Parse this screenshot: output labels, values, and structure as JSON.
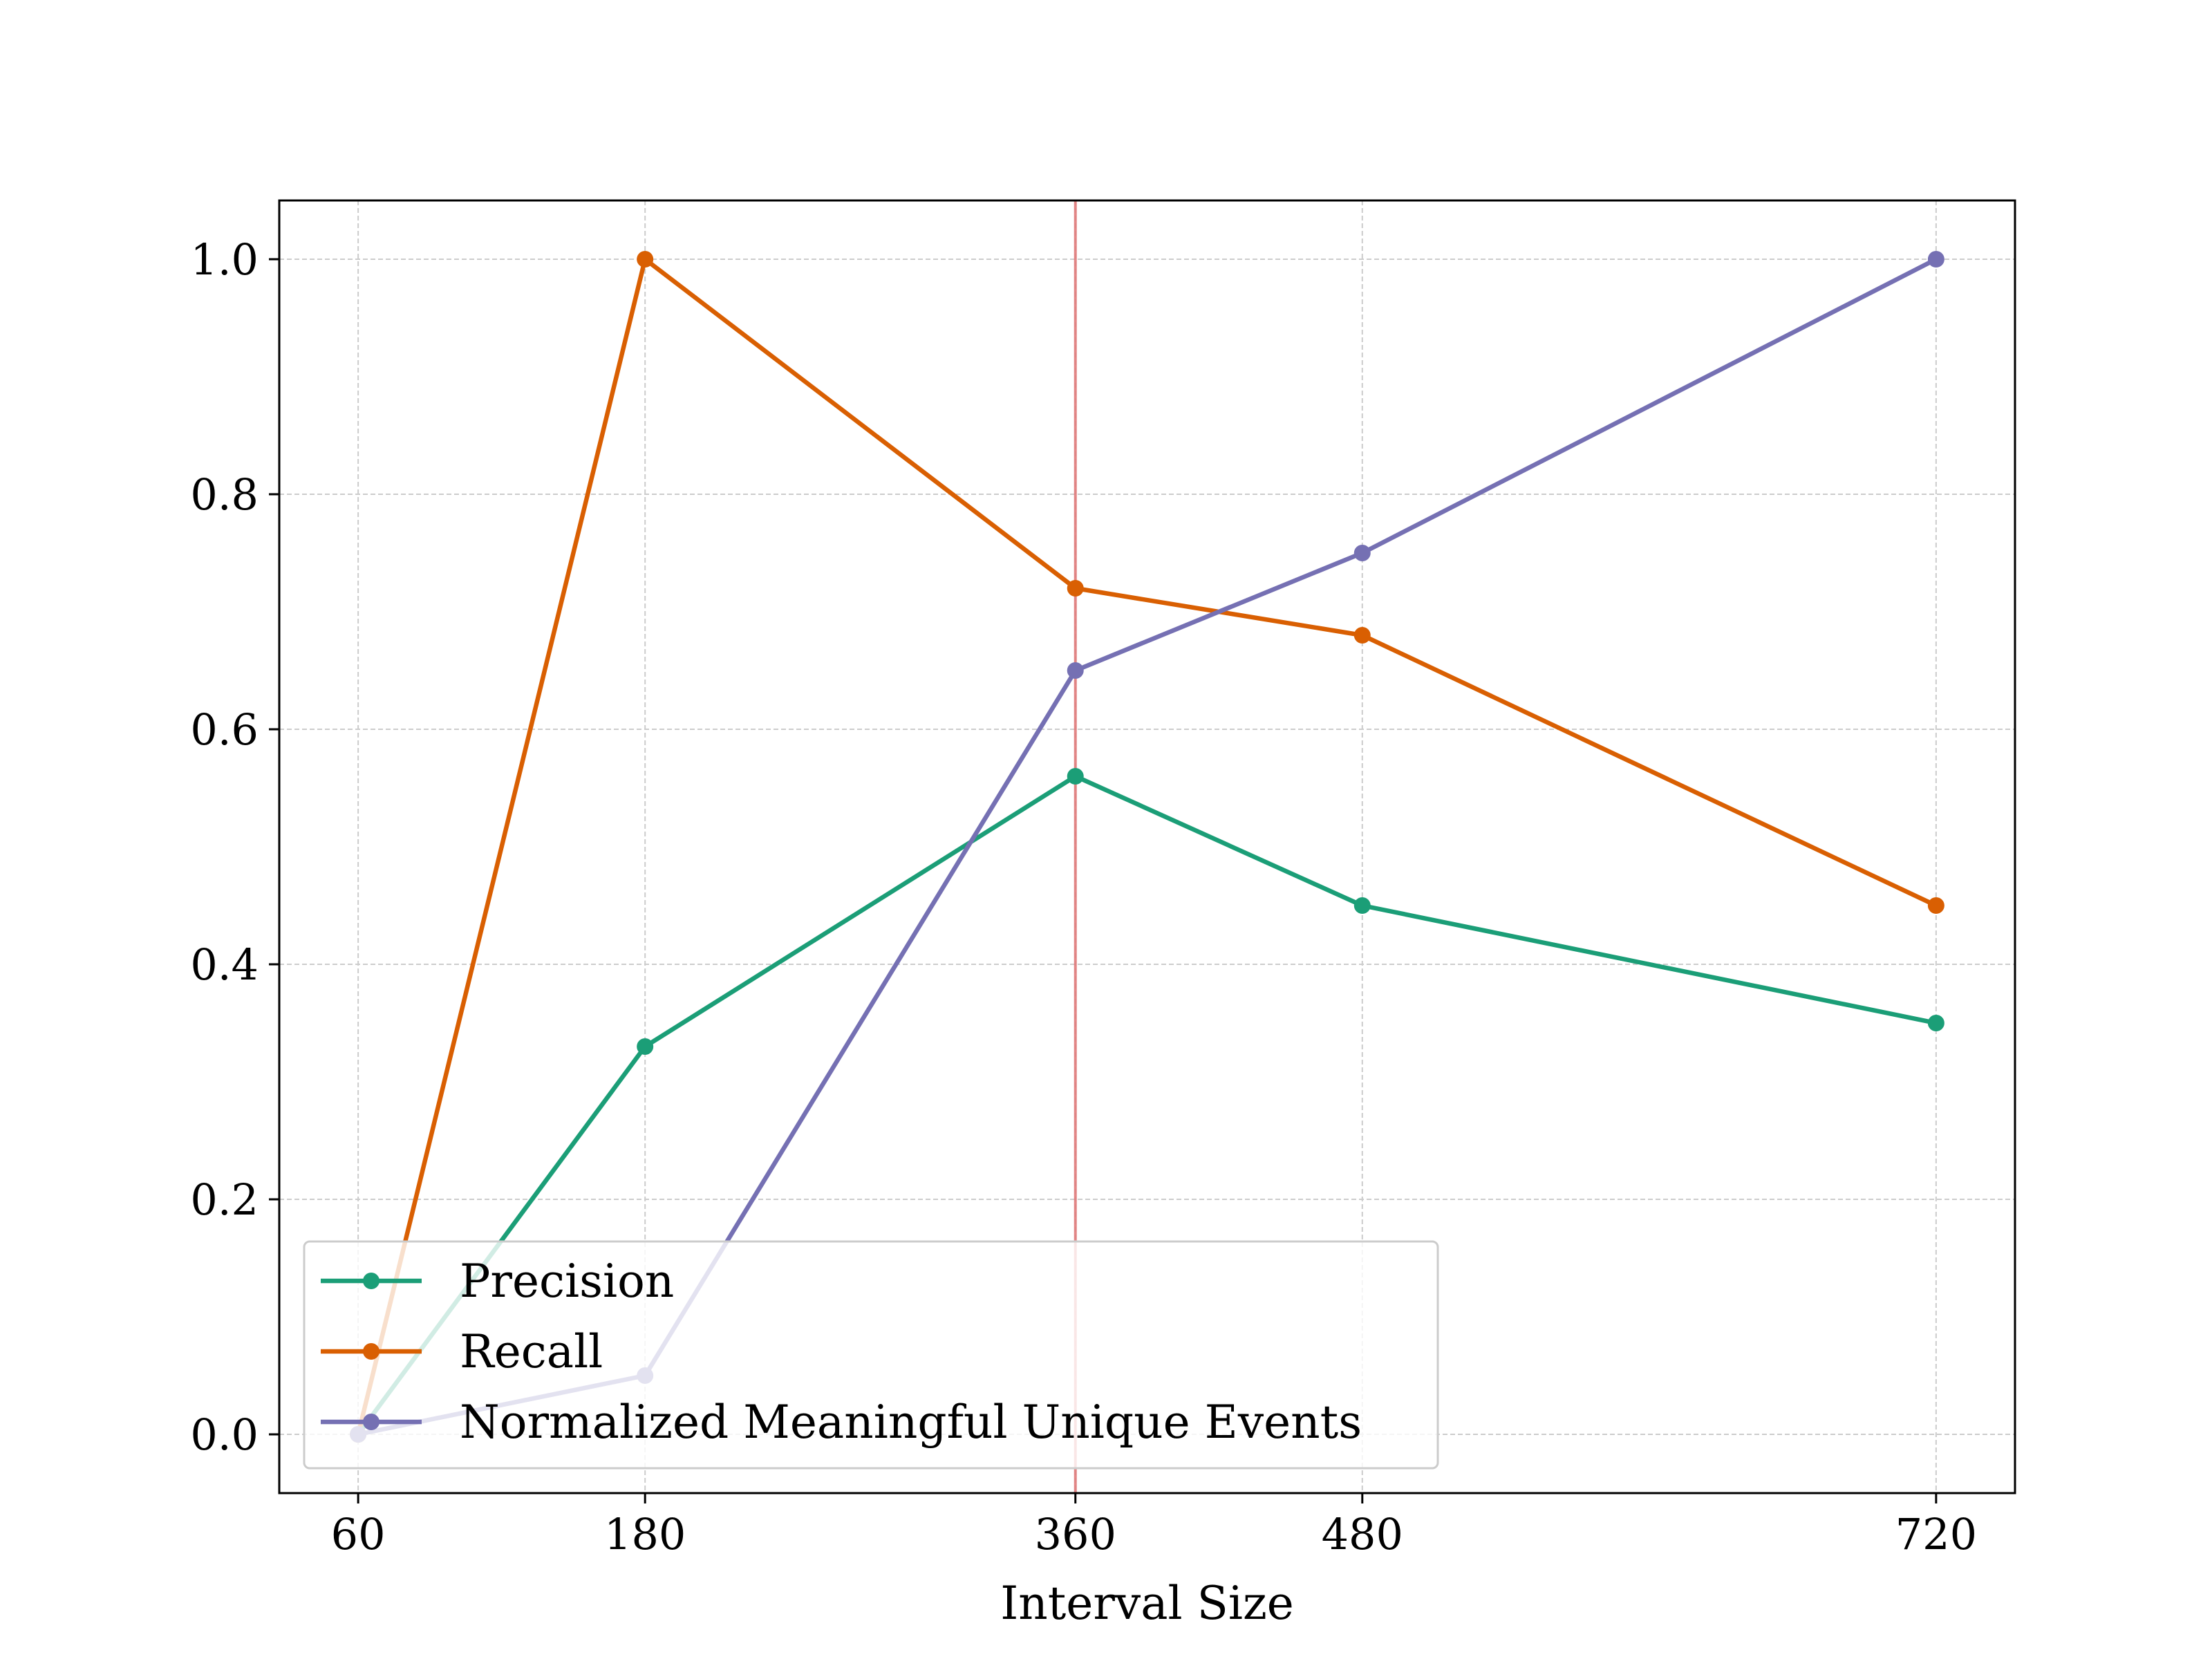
{
  "chart_data": {
    "type": "line",
    "title": "",
    "xlabel": "Interval Size",
    "ylabel": "",
    "x": [
      60,
      180,
      360,
      480,
      720
    ],
    "x_tick_labels": [
      "60",
      "180",
      "360",
      "480",
      "720"
    ],
    "y_ticks": [
      0.0,
      0.2,
      0.4,
      0.6,
      0.8,
      1.0
    ],
    "y_tick_labels": [
      "0.0",
      "0.2",
      "0.4",
      "0.6",
      "0.8",
      "1.0"
    ],
    "xlim": [
      27,
      753
    ],
    "ylim": [
      -0.05,
      1.05
    ],
    "grid": true,
    "legend_position": "lower-left",
    "vertical_reference_line": {
      "x": 360,
      "color": "#e07b7b"
    },
    "series": [
      {
        "name": "Precision",
        "color": "#1b9e77",
        "values": [
          0.0,
          0.33,
          0.56,
          0.45,
          0.35
        ]
      },
      {
        "name": "Recall",
        "color": "#d95f02",
        "values": [
          0.0,
          1.0,
          0.72,
          0.68,
          0.45
        ]
      },
      {
        "name": "Normalized Meaningful Unique Events",
        "color": "#7570b3",
        "values": [
          0.0,
          0.05,
          0.65,
          0.75,
          1.0
        ]
      }
    ]
  }
}
